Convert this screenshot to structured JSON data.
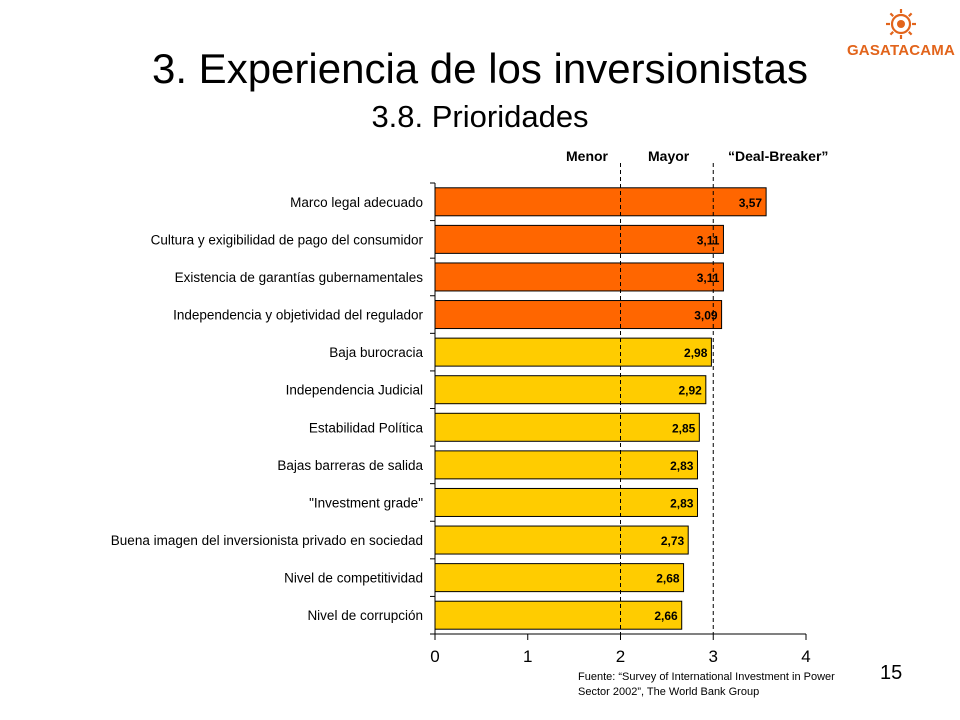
{
  "slide": {
    "title": "3. Experiencia de los inversionistas",
    "subtitle": "3.8. Prioridades",
    "logo_text": "GASATACAMA",
    "source_line1": "Fuente: “Survey of International Investment in Power",
    "source_line2": "Sector 2002”, The World Bank Group",
    "page_number": "15"
  },
  "zones": {
    "menor": "Menor",
    "mayor": "Mayor",
    "deal_breaker": "“Deal-Breaker”"
  },
  "colors": {
    "high_priority": "#ff6600",
    "normal_priority": "#ffcc00",
    "logo": "#e2641b"
  },
  "chart_data": {
    "type": "bar",
    "orientation": "horizontal",
    "categories": [
      "Marco legal adecuado",
      "Cultura y exigibilidad de pago del consumidor",
      "Existencia de garantías gubernamentales",
      "Independencia y objetividad del regulador",
      "Baja burocracia",
      "Independencia Judicial",
      "Estabilidad Política",
      "Bajas barreras de salida",
      "\"Investment grade\"",
      "Buena imagen del inversionista privado en sociedad",
      "Nivel de competitividad",
      "Nivel de corrupción"
    ],
    "values": [
      3.57,
      3.11,
      3.11,
      3.09,
      2.98,
      2.92,
      2.85,
      2.83,
      2.83,
      2.73,
      2.68,
      2.66
    ],
    "value_labels": [
      "3,57",
      "3,11",
      "3,11",
      "3,09",
      "2,98",
      "2,92",
      "2,85",
      "2,83",
      "2,83",
      "2,73",
      "2,68",
      "2,66"
    ],
    "bar_colors": [
      "#ff6600",
      "#ff6600",
      "#ff6600",
      "#ff6600",
      "#ffcc00",
      "#ffcc00",
      "#ffcc00",
      "#ffcc00",
      "#ffcc00",
      "#ffcc00",
      "#ffcc00",
      "#ffcc00"
    ],
    "xlim": [
      0,
      4
    ],
    "xticks": [
      "0",
      "1",
      "2",
      "3",
      "4"
    ],
    "reference_lines": [
      2,
      3
    ],
    "grid": false,
    "legend": "none"
  }
}
